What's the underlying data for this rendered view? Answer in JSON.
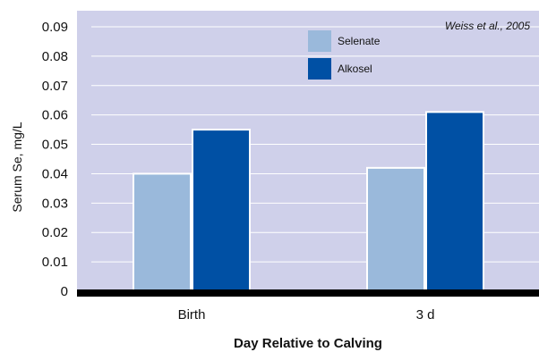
{
  "chart_data": {
    "type": "bar",
    "categories": [
      "Birth",
      "3 d"
    ],
    "series": [
      {
        "name": "Selenate",
        "values": [
          0.04,
          0.042
        ],
        "color": "#9ab9db"
      },
      {
        "name": "Alkosel",
        "values": [
          0.055,
          0.061
        ],
        "color": "#0050a4"
      }
    ],
    "xlabel": "Day Relative to Calving",
    "ylabel": "Serum Se, mg/L",
    "ylim": [
      0,
      0.09
    ],
    "yticks": [
      "0",
      "0.01",
      "0.02",
      "0.03",
      "0.04",
      "0.05",
      "0.06",
      "0.07",
      "0.08",
      "0.09"
    ],
    "annotation": "Weiss et al., 2005",
    "legend_position": "top-center",
    "grid": true,
    "plot_background": "#cfd0ea",
    "gridline_color": "#ffffff",
    "baseline_color": "#000000"
  }
}
